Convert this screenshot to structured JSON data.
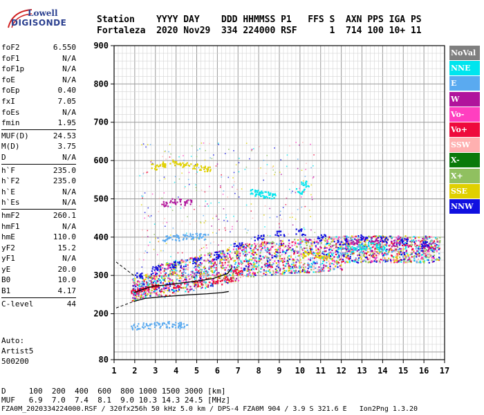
{
  "header": {
    "logo_line1": "Lowell",
    "logo_line2": "DIGISONDE",
    "row1": "Station    YYYY DAY    DDD HHMMSS P1   FFS S  AXN PPS IGA PS",
    "row2": "Fortaleza  2020 Nov29  334 224000 RSF      1  714 100 10+ 11"
  },
  "params": [
    {
      "k": "foF2",
      "v": "6.550"
    },
    {
      "k": "foF1",
      "v": "N/A"
    },
    {
      "k": "foF1p",
      "v": "N/A"
    },
    {
      "k": "foE",
      "v": "N/A"
    },
    {
      "k": "foEp",
      "v": "0.40"
    },
    {
      "k": "fxI",
      "v": "7.05"
    },
    {
      "k": "foEs",
      "v": "N/A"
    },
    {
      "k": "fmin",
      "v": "1.95"
    },
    {
      "k": "MUF(D)",
      "v": "24.53"
    },
    {
      "k": "M(D)",
      "v": "3.75"
    },
    {
      "k": "D",
      "v": "N/A"
    },
    {
      "k": "h`F",
      "v": "235.0"
    },
    {
      "k": "h`F2",
      "v": "235.0"
    },
    {
      "k": "h`E",
      "v": "N/A"
    },
    {
      "k": "h`Es",
      "v": "N/A"
    },
    {
      "k": "hmF2",
      "v": "260.1"
    },
    {
      "k": "hmF1",
      "v": "N/A"
    },
    {
      "k": "hmE",
      "v": "110.0"
    },
    {
      "k": "yF2",
      "v": "15.2"
    },
    {
      "k": "yF1",
      "v": "N/A"
    },
    {
      "k": "yE",
      "v": "20.0"
    },
    {
      "k": "B0",
      "v": "10.0"
    },
    {
      "k": "B1",
      "v": "4.17"
    },
    {
      "k": "C-level",
      "v": "44"
    }
  ],
  "auto": {
    "line1": "Auto:",
    "line2": "Artist5",
    "line3": "500200"
  },
  "legend": [
    {
      "label": "NoVal",
      "color": "#7f7f7f"
    },
    {
      "label": "NNE",
      "color": "#00e5ee"
    },
    {
      "label": "E",
      "color": "#5aaaf0"
    },
    {
      "label": "W",
      "color": "#b0139c"
    },
    {
      "label": "Vo-",
      "color": "#ff3fc0"
    },
    {
      "label": "Vo+",
      "color": "#ee0a3c"
    },
    {
      "label": "SSW",
      "color": "#ffb0b0"
    },
    {
      "label": "X-",
      "color": "#0a7a0a"
    },
    {
      "label": "X+",
      "color": "#90c060"
    },
    {
      "label": "SSE",
      "color": "#e0d000"
    },
    {
      "label": "NNW",
      "color": "#1010e0"
    }
  ],
  "footer": {
    "line1": "D     100  200  400  600  800 1000 1500 3000 [km]",
    "line2": "MUF   6.9  7.0  7.4  8.1  9.0 10.3 14.3 24.5 [MHz]",
    "line3": "FZA0M_2020334224000.RSF / 320fx256h 50 kHz 5.0 km / DPS-4 FZA0M 904 / 3.9 S 321.6 E   Ion2Png 1.3.20"
  },
  "chart_data": {
    "type": "scatter",
    "title": "",
    "xlabel": "",
    "ylabel": "",
    "xlim": [
      1,
      17
    ],
    "ylim": [
      80,
      900
    ],
    "x_ticks": [
      1,
      2,
      3,
      4,
      5,
      6,
      7,
      8,
      9,
      10,
      11,
      12,
      13,
      14,
      15,
      16,
      17
    ],
    "y_ticks": [
      80,
      200,
      300,
      400,
      500,
      600,
      700,
      800,
      900
    ],
    "grid": true,
    "legend_position": "right",
    "series": [
      {
        "name": "E",
        "points": [
          [
            2.0,
            168
          ],
          [
            2.5,
            170
          ],
          [
            3.0,
            172
          ],
          [
            3.5,
            173
          ],
          [
            4.0,
            172
          ],
          [
            4.3,
            170
          ],
          [
            3.5,
            398
          ],
          [
            4.0,
            400
          ],
          [
            4.5,
            402
          ],
          [
            5.0,
            405
          ],
          [
            5.3,
            403
          ]
        ]
      },
      {
        "name": "NNE",
        "points": [
          [
            7.8,
            520
          ],
          [
            8.0,
            515
          ],
          [
            8.3,
            512
          ],
          [
            8.6,
            510
          ],
          [
            10.0,
            520
          ],
          [
            10.2,
            540
          ],
          [
            12.5,
            370
          ],
          [
            13.0,
            375
          ],
          [
            13.5,
            380
          ],
          [
            14.0,
            372
          ]
        ]
      },
      {
        "name": "W",
        "points": [
          [
            3.5,
            490
          ],
          [
            4.0,
            495
          ],
          [
            4.5,
            492
          ],
          [
            12.6,
            390
          ],
          [
            13.6,
            395
          ],
          [
            14.6,
            385
          ],
          [
            16.2,
            380
          ]
        ]
      },
      {
        "name": "Vo+",
        "points": [
          [
            2.0,
            260
          ],
          [
            2.5,
            265
          ],
          [
            3.0,
            270
          ],
          [
            4.0,
            275
          ],
          [
            5.0,
            280
          ],
          [
            6.0,
            285
          ],
          [
            6.5,
            290
          ],
          [
            7.0,
            310
          ]
        ]
      },
      {
        "name": "SSE",
        "points": [
          [
            3.0,
            585
          ],
          [
            3.5,
            590
          ],
          [
            4.0,
            595
          ],
          [
            4.5,
            590
          ],
          [
            5.0,
            585
          ],
          [
            5.5,
            580
          ],
          [
            10.3,
            360
          ],
          [
            10.8,
            355
          ],
          [
            11.3,
            350
          ]
        ]
      },
      {
        "name": "NNW",
        "points": [
          [
            2.2,
            300
          ],
          [
            3.0,
            320
          ],
          [
            4.0,
            330
          ],
          [
            5.0,
            340
          ],
          [
            6.0,
            350
          ],
          [
            7.0,
            380
          ],
          [
            8.0,
            400
          ],
          [
            9.0,
            410
          ],
          [
            10.0,
            415
          ],
          [
            11.0,
            400
          ],
          [
            12.0,
            390
          ],
          [
            13.0,
            400
          ],
          [
            14.0,
            395
          ],
          [
            15.0,
            390
          ],
          [
            16.0,
            385
          ]
        ]
      }
    ]
  }
}
